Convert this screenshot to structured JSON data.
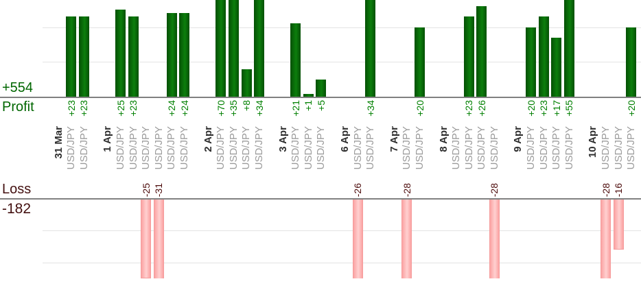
{
  "summary": {
    "profit_total": "+554",
    "profit_label": "Profit",
    "loss_label": "Loss",
    "loss_total": "-182"
  },
  "colors": {
    "profit_bar_fill": "#0c7e0c",
    "profit_bar_edge": "#055005",
    "profit_value_text": "#008000",
    "profit_summary_text": "#006600",
    "loss_bar_fill": "#ffd0d0",
    "loss_bar_inner_edge": "#fba3a3",
    "loss_bar_border": "#f59c9c",
    "loss_value_text": "#4d0b0b",
    "loss_summary_text": "#431010",
    "date_text": "#2e2e2e",
    "symbol_text": "#9b9b9b",
    "axis_line": "#808080",
    "gridline": "#e3e3e3"
  },
  "chart_data": {
    "type": "bar",
    "orientation": "vertical-grouped-by-date",
    "profit_total": 554,
    "loss_total": -182,
    "profit_axis": {
      "visible_max": 27,
      "gridlines": [
        10,
        20
      ],
      "grid": true
    },
    "loss_axis": {
      "visible_min": -25,
      "gridlines": [
        -10,
        -20
      ],
      "grid": true
    },
    "groups": [
      {
        "date": "31 Mar",
        "trades": [
          {
            "symbol": "USD/JPY",
            "value": 23
          },
          {
            "symbol": "USD/JPY",
            "value": 23
          }
        ]
      },
      {
        "date": "1 Apr",
        "trades": [
          {
            "symbol": "USD/JPY",
            "value": 25
          },
          {
            "symbol": "USD/JPY",
            "value": 23
          },
          {
            "symbol": "USD/JPY",
            "value": -25
          },
          {
            "symbol": "USD/JPY",
            "value": -31
          },
          {
            "symbol": "USD/JPY",
            "value": 24
          },
          {
            "symbol": "USD/JPY",
            "value": 24
          }
        ]
      },
      {
        "date": "2 Apr",
        "trades": [
          {
            "symbol": "USD/JPY",
            "value": 70
          },
          {
            "symbol": "USD/JPY",
            "value": 35
          },
          {
            "symbol": "USD/JPY",
            "value": 8
          },
          {
            "symbol": "USD/JPY",
            "value": 34
          }
        ]
      },
      {
        "date": "3 Apr",
        "trades": [
          {
            "symbol": "USD/JPY",
            "value": 21
          },
          {
            "symbol": "USD/JPY",
            "value": 1
          },
          {
            "symbol": "USD/JPY",
            "value": 5
          }
        ]
      },
      {
        "date": "6 Apr",
        "trades": [
          {
            "symbol": "USD/JPY",
            "value": -26
          },
          {
            "symbol": "USD/JPY",
            "value": 34
          }
        ]
      },
      {
        "date": "7 Apr",
        "trades": [
          {
            "symbol": "USD/JPY",
            "value": -28
          },
          {
            "symbol": "USD/JPY",
            "value": 20
          }
        ]
      },
      {
        "date": "8 Apr",
        "trades": [
          {
            "symbol": "USD/JPY",
            "value": 0
          },
          {
            "symbol": "USD/JPY",
            "value": 23
          },
          {
            "symbol": "USD/JPY",
            "value": 26
          },
          {
            "symbol": "USD/JPY",
            "value": -28
          }
        ]
      },
      {
        "date": "9 Apr",
        "trades": [
          {
            "symbol": "USD/JPY",
            "value": 20
          },
          {
            "symbol": "USD/JPY",
            "value": 23
          },
          {
            "symbol": "USD/JPY",
            "value": 17
          },
          {
            "symbol": "USD/JPY",
            "value": 55
          }
        ]
      },
      {
        "date": "10 Apr",
        "trades": [
          {
            "symbol": "USD/JPY",
            "value": -28
          },
          {
            "symbol": "USD/JPY",
            "value": -16
          },
          {
            "symbol": "USD/JPY",
            "value": 20
          }
        ]
      }
    ]
  }
}
